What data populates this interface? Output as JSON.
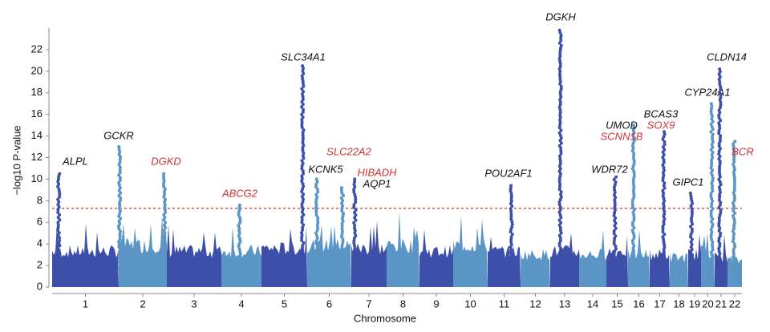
{
  "chart_data": {
    "type": "manhattan",
    "x_label": "Chromosome",
    "y_label": "−log10 P-value",
    "categories": [
      "1",
      "2",
      "3",
      "4",
      "5",
      "6",
      "7",
      "8",
      "9",
      "10",
      "11",
      "12",
      "13",
      "14",
      "15",
      "16",
      "17",
      "18",
      "19",
      "20",
      "21",
      "22"
    ],
    "colors": [
      "#3d4fa8",
      "#5b95c6"
    ],
    "background": [
      6,
      7,
      6,
      6,
      6.5,
      7,
      6.5,
      7,
      6,
      7,
      6,
      5.5,
      6,
      5.5,
      6,
      5.5,
      5.5,
      5,
      5.5,
      6,
      5,
      4.5
    ],
    "ylim": [
      0,
      24
    ],
    "yticks": [
      0,
      2,
      4,
      6,
      8,
      10,
      12,
      14,
      16,
      18,
      20,
      22
    ],
    "threshold": 7.3,
    "threshold_color": "#e03030",
    "peaks": [
      {
        "chromosome": "1",
        "position": 0.1,
        "value": 10.5,
        "genes": [
          {
            "name": "ALPL",
            "color": "#111111"
          }
        ]
      },
      {
        "chromosome": "2",
        "position": 0.02,
        "value": 13,
        "genes": [
          {
            "name": "GCKR",
            "color": "#111111"
          }
        ]
      },
      {
        "chromosome": "2",
        "position": 0.95,
        "value": 10.5,
        "genes": [
          {
            "name": "DGKD",
            "color": "#d03030"
          }
        ]
      },
      {
        "chromosome": "4",
        "position": 0.45,
        "value": 7.6,
        "genes": [
          {
            "name": "ABCG2",
            "color": "#d03030"
          }
        ]
      },
      {
        "chromosome": "5",
        "position": 0.9,
        "value": 20.5,
        "genes": [
          {
            "name": "SLC34A1",
            "color": "#111111"
          }
        ]
      },
      {
        "chromosome": "6",
        "position": 0.22,
        "value": 10,
        "genes": [
          {
            "name": "KCNK5",
            "color": "#111111"
          }
        ]
      },
      {
        "chromosome": "6",
        "position": 0.8,
        "value": 9.2,
        "genes": [
          {
            "name": "SLC22A2",
            "color": "#d03030"
          }
        ]
      },
      {
        "chromosome": "7",
        "position": 0.1,
        "value": 10,
        "genes": [
          {
            "name": "HIBADH",
            "color": "#d03030"
          },
          {
            "name": "AQP1",
            "color": "#111111"
          }
        ]
      },
      {
        "chromosome": "11",
        "position": 0.72,
        "value": 9.4,
        "genes": [
          {
            "name": "POU2AF1",
            "color": "#111111"
          }
        ]
      },
      {
        "chromosome": "13",
        "position": 0.35,
        "value": 23.8,
        "genes": [
          {
            "name": "DGKH",
            "color": "#111111"
          }
        ]
      },
      {
        "chromosome": "15",
        "position": 0.4,
        "value": 10.2,
        "genes": [
          {
            "name": "WDR72",
            "color": "#111111"
          }
        ]
      },
      {
        "chromosome": "16",
        "position": 0.25,
        "value": 15,
        "genes": [
          {
            "name": "UMOD",
            "color": "#111111"
          },
          {
            "name": "SCNN1B",
            "color": "#d03030"
          }
        ]
      },
      {
        "chromosome": "17",
        "position": 0.7,
        "value": 14.4,
        "genes": [
          {
            "name": "BCAS3",
            "color": "#111111"
          },
          {
            "name": "SOX9",
            "color": "#d03030"
          }
        ]
      },
      {
        "chromosome": "19",
        "position": 0.25,
        "value": 8.7,
        "genes": [
          {
            "name": "GIPC1",
            "color": "#111111"
          }
        ]
      },
      {
        "chromosome": "20",
        "position": 0.8,
        "value": 17,
        "genes": [
          {
            "name": "CYP24A1",
            "color": "#111111"
          }
        ]
      },
      {
        "chromosome": "21",
        "position": 0.4,
        "value": 20.2,
        "genes": [
          {
            "name": "CLDN14",
            "color": "#111111"
          }
        ]
      },
      {
        "chromosome": "22",
        "position": 0.45,
        "value": 13.5,
        "genes": [
          {
            "name": "BCR",
            "color": "#d03030"
          }
        ]
      }
    ]
  }
}
